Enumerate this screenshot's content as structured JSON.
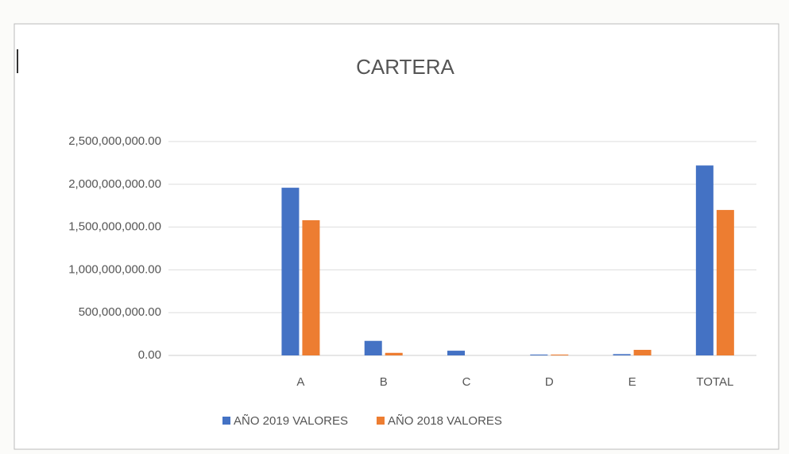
{
  "chart_data": {
    "type": "bar",
    "title": "CARTERA",
    "categories": [
      null,
      "A",
      "B",
      "C",
      "D",
      "E",
      "TOTAL"
    ],
    "series": [
      {
        "name": "AÑO 2019 VALORES",
        "color": "#4472c4",
        "values": [
          null,
          1960000000,
          170000000,
          55000000,
          10000000,
          15000000,
          2220000000
        ]
      },
      {
        "name": "AÑO 2018 VALORES",
        "color": "#ed7d31",
        "values": [
          null,
          1580000000,
          30000000,
          0,
          10000000,
          65000000,
          1700000000
        ]
      }
    ],
    "ylim": [
      0,
      2500000000
    ],
    "yticks": [
      {
        "value": 0,
        "label": "0.00"
      },
      {
        "value": 500000000,
        "label": "500,000,000.00"
      },
      {
        "value": 1000000000,
        "label": "1,000,000,000.00"
      },
      {
        "value": 1500000000,
        "label": "1,500,000,000.00"
      },
      {
        "value": 2000000000,
        "label": "2,000,000,000.00"
      },
      {
        "value": 2500000000,
        "label": "2,500,000,000.00"
      }
    ],
    "grid": true,
    "legend": "bottom"
  }
}
